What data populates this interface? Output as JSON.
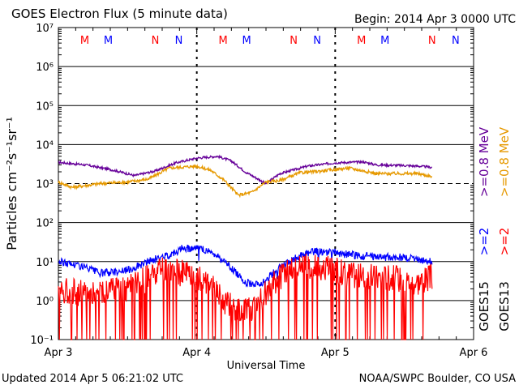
{
  "chart_data": {
    "type": "line",
    "title": "GOES Electron Flux (5 minute data)",
    "begin_label": "Begin: 2014 Apr 3 0000 UTC",
    "xlabel": "Universal Time",
    "ylabel": "Particles cm⁻²s⁻¹sr⁻¹",
    "yscale": "log",
    "ylim": [
      0.1,
      10000000
    ],
    "ytick_labels": [
      "10⁻¹",
      "10⁰",
      "10¹",
      "10²",
      "10³",
      "10⁴",
      "10⁵",
      "10⁶",
      "10⁷"
    ],
    "xlim_days": [
      0,
      3
    ],
    "xtick_labels": [
      "Apr 3",
      "Apr 4",
      "Apr 5",
      "Apr 6"
    ],
    "threshold_lines": [
      1000,
      10
    ],
    "right_labels": {
      "energy_top": [
        ">=0.8 MeV",
        ">=0.8 MeV"
      ],
      "energy_bottom": [
        ">=2",
        ">=2"
      ],
      "satellites": [
        "GOES15",
        "GOES13"
      ]
    },
    "markers": {
      "labels": [
        "M",
        "M",
        "N",
        "N",
        "M",
        "M",
        "N",
        "N",
        "M",
        "M",
        "N",
        "N"
      ],
      "colors": [
        "#ff0000",
        "#0000ff",
        "#ff0000",
        "#0000ff",
        "#ff0000",
        "#0000ff",
        "#ff0000",
        "#0000ff",
        "#ff0000",
        "#0000ff",
        "#ff0000",
        "#0000ff"
      ],
      "times_days": [
        0.19,
        0.36,
        0.7,
        0.87,
        1.19,
        1.36,
        1.7,
        1.87,
        2.19,
        2.36,
        2.7,
        2.87
      ]
    },
    "series": [
      {
        "name": "GOES15 >=0.8 MeV",
        "color": "#660099",
        "x": [
          0.0,
          0.2,
          0.4,
          0.55,
          0.7,
          0.85,
          1.0,
          1.15,
          1.25,
          1.35,
          1.5,
          1.6,
          1.8,
          2.0,
          2.2,
          2.3,
          2.5,
          2.6,
          2.7
        ],
        "y": [
          3500,
          3000,
          2200,
          1600,
          2100,
          3400,
          4500,
          5000,
          3800,
          2000,
          1000,
          1800,
          2800,
          3400,
          3600,
          3000,
          2900,
          2800,
          2600
        ]
      },
      {
        "name": "GOES13 >=0.8 MeV",
        "color": "#e69900",
        "x": [
          0.0,
          0.1,
          0.3,
          0.5,
          0.65,
          0.8,
          1.0,
          1.1,
          1.2,
          1.3,
          1.4,
          1.5,
          1.6,
          1.75,
          1.9,
          2.1,
          2.3,
          2.5,
          2.6,
          2.7
        ],
        "y": [
          1100,
          800,
          1000,
          1100,
          1300,
          2500,
          2800,
          2200,
          1200,
          500,
          600,
          1100,
          1200,
          1900,
          2100,
          2500,
          1800,
          1800,
          1800,
          1500
        ]
      },
      {
        "name": "GOES15 >=2 MeV",
        "color": "#0000ff",
        "x": [
          0.0,
          0.15,
          0.3,
          0.5,
          0.65,
          0.8,
          0.9,
          1.0,
          1.1,
          1.2,
          1.35,
          1.45,
          1.55,
          1.7,
          1.85,
          2.0,
          2.1,
          2.3,
          2.5,
          2.7
        ],
        "y": [
          10,
          8,
          5,
          6,
          10,
          15,
          22,
          22,
          18,
          10,
          3,
          2.5,
          5,
          12,
          18,
          17,
          15,
          13,
          13,
          10
        ]
      },
      {
        "name": "GOES13 >=2 MeV",
        "color": "#ff0000",
        "x": [
          0.0,
          0.2,
          0.4,
          0.5,
          0.6,
          0.75,
          0.9,
          1.0,
          1.1,
          1.2,
          1.3,
          1.45,
          1.55,
          1.65,
          1.8,
          2.0,
          2.2,
          2.4,
          2.6,
          2.7
        ],
        "y": [
          2,
          1.5,
          2,
          2,
          3,
          6,
          5,
          4,
          3,
          1,
          0.5,
          0.8,
          3,
          5,
          8,
          6,
          4,
          4,
          3,
          4
        ]
      }
    ]
  },
  "footer": {
    "updated": "Updated 2014 Apr  5 06:21:02 UTC",
    "source": "NOAA/SWPC Boulder, CO USA"
  },
  "colors": {
    "goes15_08": "#660099",
    "goes13_08": "#e69900",
    "goes15_2": "#0000ff",
    "goes13_2": "#ff0000"
  }
}
